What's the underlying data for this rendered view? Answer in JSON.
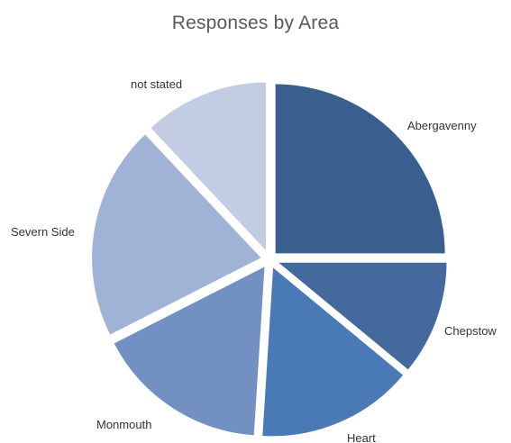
{
  "chart_data": {
    "type": "pie",
    "title": "Responses by Area",
    "slices": [
      {
        "label": "Abergavenny",
        "value": 25,
        "color": "#3a5f8f"
      },
      {
        "label": "Chepstow",
        "value": 11,
        "color": "#43699d"
      },
      {
        "label": "Heart",
        "value": 15,
        "color": "#4a7ab5"
      },
      {
        "label": "Monmouth",
        "value": 16.5,
        "color": "#7390c3"
      },
      {
        "label": "Severn Side",
        "value": 20.5,
        "color": "#a0b3d6"
      },
      {
        "label": "not stated",
        "value": 12,
        "color": "#c2cde3"
      }
    ],
    "start_angle_deg": 0,
    "direction": "clockwise",
    "legend": "none"
  }
}
